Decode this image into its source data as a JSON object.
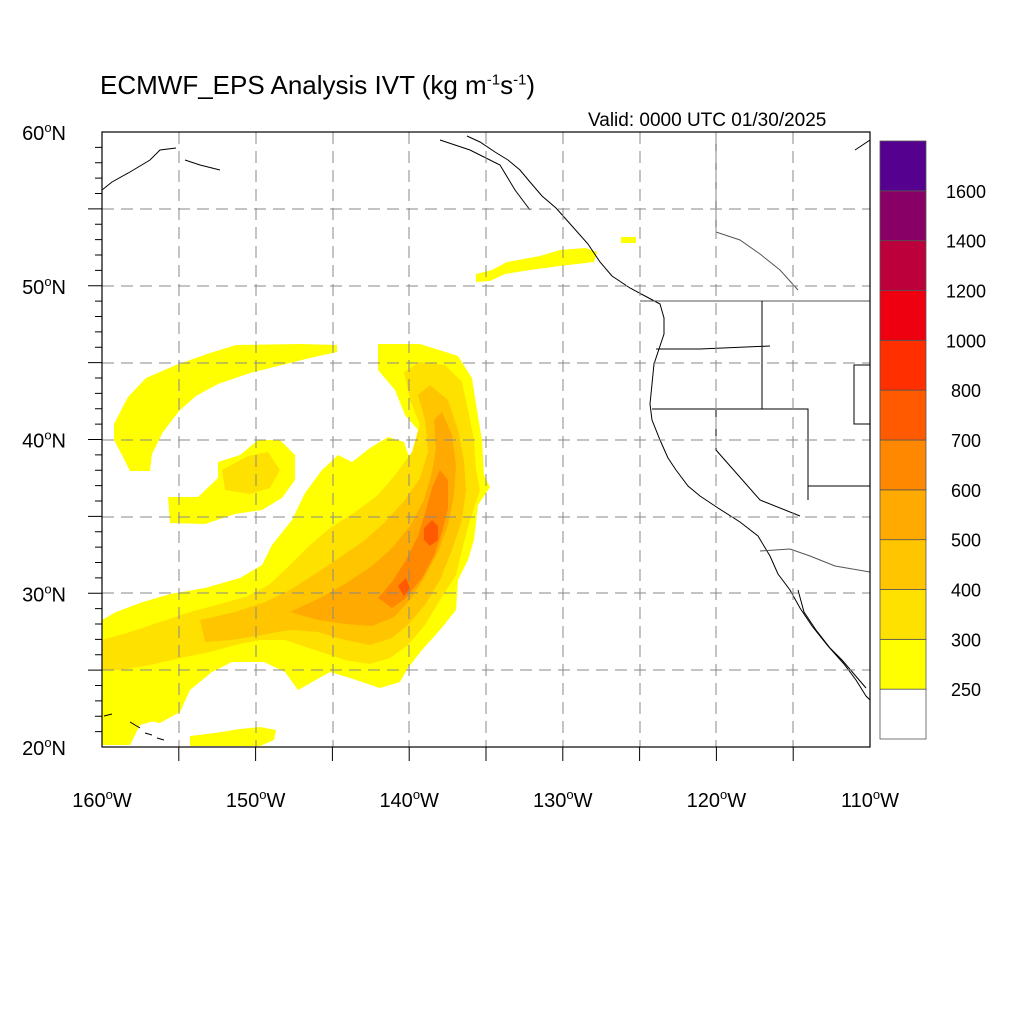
{
  "title": {
    "prefix": "ECMWF_EPS Analysis IVT (kg m",
    "exp1": "-1",
    "mid": "s",
    "exp2": "-1",
    "suffix": ")"
  },
  "valid_time": "Valid: 0000 UTC 01/30/2025",
  "map": {
    "lat_range": [
      20,
      60
    ],
    "lon_range": [
      -160,
      -110
    ],
    "lat_labels": [
      {
        "lat": 60,
        "text": "60",
        "hemi": "N"
      },
      {
        "lat": 50,
        "text": "50",
        "hemi": "N"
      },
      {
        "lat": 40,
        "text": "40",
        "hemi": "N"
      },
      {
        "lat": 30,
        "text": "30",
        "hemi": "N"
      },
      {
        "lat": 20,
        "text": "20",
        "hemi": "N"
      }
    ],
    "lon_labels": [
      {
        "lon": -160,
        "text": "160",
        "hemi": "W"
      },
      {
        "lon": -150,
        "text": "150",
        "hemi": "W"
      },
      {
        "lon": -140,
        "text": "140",
        "hemi": "W"
      },
      {
        "lon": -130,
        "text": "130",
        "hemi": "W"
      },
      {
        "lon": -120,
        "text": "120",
        "hemi": "W"
      },
      {
        "lon": -110,
        "text": "110",
        "hemi": "W"
      }
    ],
    "grid_lines": "dashed every 5 degrees"
  },
  "colorbar": {
    "levels": [
      "250",
      "300",
      "400",
      "500",
      "600",
      "700",
      "800",
      "1000",
      "1200",
      "1400",
      "1600"
    ],
    "colors": [
      "#ffffff",
      "#ffff00",
      "#ffe100",
      "#ffc600",
      "#ffaa00",
      "#ff8800",
      "#ff5a00",
      "#ff2f00",
      "#ee0011",
      "#bb003c",
      "#880066",
      "#55008f"
    ]
  },
  "colors": {
    "ivt_250_300": "#ffff00",
    "ivt_300_400": "#ffe100",
    "ivt_400_500": "#ffc600",
    "ivt_500_600": "#ffaa00",
    "ivt_600_700": "#ff8800",
    "ivt_700_800": "#ff5a00",
    "gridline": "#888888",
    "coastline": "#000000"
  }
}
